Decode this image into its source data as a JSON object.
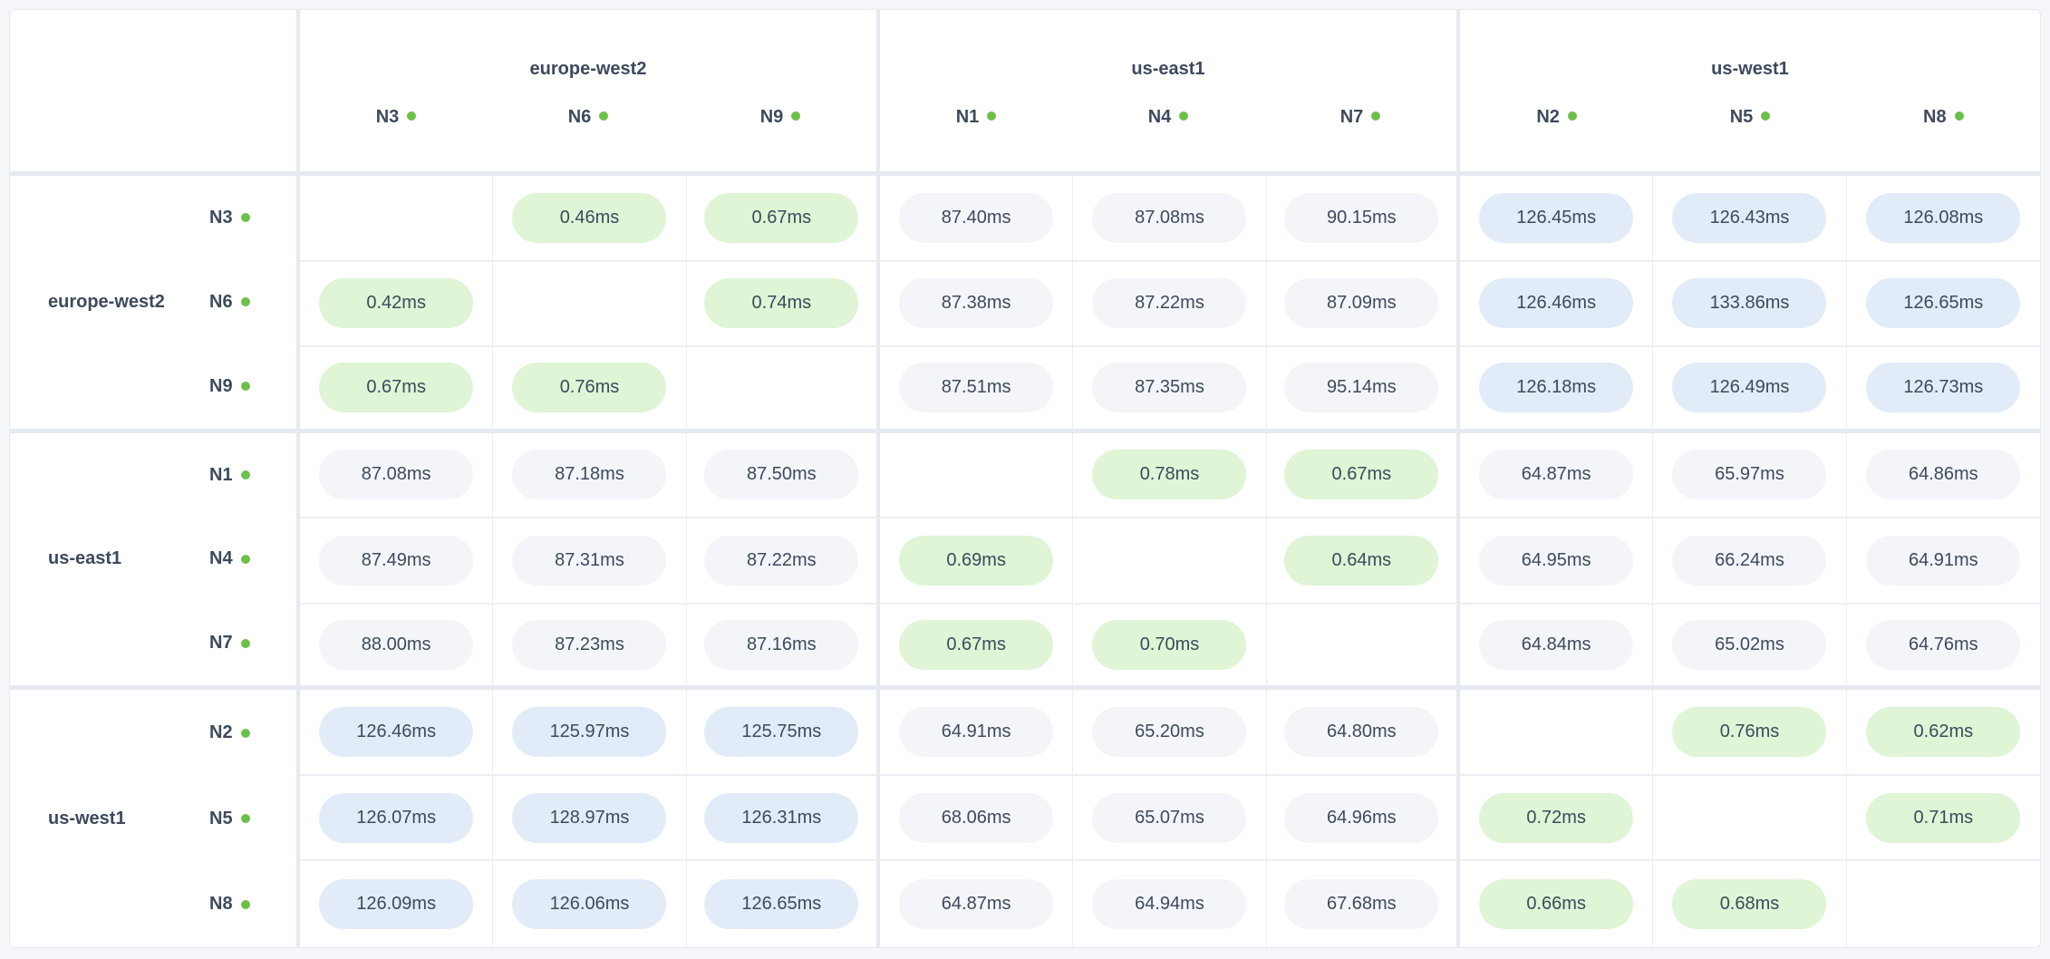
{
  "colors": {
    "green": "#dff5d6",
    "blue": "#e2ecf8",
    "gray": "#f3f5f9",
    "status_dot": "#6cc04a",
    "text": "#3d4a5c"
  },
  "status_icon": "green-status-dot",
  "regions": [
    {
      "name": "europe-west2",
      "nodes": [
        "N3",
        "N6",
        "N9"
      ]
    },
    {
      "name": "us-east1",
      "nodes": [
        "N1",
        "N4",
        "N7"
      ]
    },
    {
      "name": "us-west1",
      "nodes": [
        "N2",
        "N5",
        "N8"
      ]
    }
  ],
  "matrix": [
    {
      "row": "N3",
      "cells": [
        {
          "v": "",
          "t": ""
        },
        {
          "v": "0.46ms",
          "t": "green"
        },
        {
          "v": "0.67ms",
          "t": "green"
        },
        {
          "v": "87.40ms",
          "t": "gray"
        },
        {
          "v": "87.08ms",
          "t": "gray"
        },
        {
          "v": "90.15ms",
          "t": "gray"
        },
        {
          "v": "126.45ms",
          "t": "blue"
        },
        {
          "v": "126.43ms",
          "t": "blue"
        },
        {
          "v": "126.08ms",
          "t": "blue"
        }
      ]
    },
    {
      "row": "N6",
      "cells": [
        {
          "v": "0.42ms",
          "t": "green"
        },
        {
          "v": "",
          "t": ""
        },
        {
          "v": "0.74ms",
          "t": "green"
        },
        {
          "v": "87.38ms",
          "t": "gray"
        },
        {
          "v": "87.22ms",
          "t": "gray"
        },
        {
          "v": "87.09ms",
          "t": "gray"
        },
        {
          "v": "126.46ms",
          "t": "blue"
        },
        {
          "v": "133.86ms",
          "t": "blue"
        },
        {
          "v": "126.65ms",
          "t": "blue"
        }
      ]
    },
    {
      "row": "N9",
      "cells": [
        {
          "v": "0.67ms",
          "t": "green"
        },
        {
          "v": "0.76ms",
          "t": "green"
        },
        {
          "v": "",
          "t": ""
        },
        {
          "v": "87.51ms",
          "t": "gray"
        },
        {
          "v": "87.35ms",
          "t": "gray"
        },
        {
          "v": "95.14ms",
          "t": "gray"
        },
        {
          "v": "126.18ms",
          "t": "blue"
        },
        {
          "v": "126.49ms",
          "t": "blue"
        },
        {
          "v": "126.73ms",
          "t": "blue"
        }
      ]
    },
    {
      "row": "N1",
      "cells": [
        {
          "v": "87.08ms",
          "t": "gray"
        },
        {
          "v": "87.18ms",
          "t": "gray"
        },
        {
          "v": "87.50ms",
          "t": "gray"
        },
        {
          "v": "",
          "t": ""
        },
        {
          "v": "0.78ms",
          "t": "green"
        },
        {
          "v": "0.67ms",
          "t": "green"
        },
        {
          "v": "64.87ms",
          "t": "gray"
        },
        {
          "v": "65.97ms",
          "t": "gray"
        },
        {
          "v": "64.86ms",
          "t": "gray"
        }
      ]
    },
    {
      "row": "N4",
      "cells": [
        {
          "v": "87.49ms",
          "t": "gray"
        },
        {
          "v": "87.31ms",
          "t": "gray"
        },
        {
          "v": "87.22ms",
          "t": "gray"
        },
        {
          "v": "0.69ms",
          "t": "green"
        },
        {
          "v": "",
          "t": ""
        },
        {
          "v": "0.64ms",
          "t": "green"
        },
        {
          "v": "64.95ms",
          "t": "gray"
        },
        {
          "v": "66.24ms",
          "t": "gray"
        },
        {
          "v": "64.91ms",
          "t": "gray"
        }
      ]
    },
    {
      "row": "N7",
      "cells": [
        {
          "v": "88.00ms",
          "t": "gray"
        },
        {
          "v": "87.23ms",
          "t": "gray"
        },
        {
          "v": "87.16ms",
          "t": "gray"
        },
        {
          "v": "0.67ms",
          "t": "green"
        },
        {
          "v": "0.70ms",
          "t": "green"
        },
        {
          "v": "",
          "t": ""
        },
        {
          "v": "64.84ms",
          "t": "gray"
        },
        {
          "v": "65.02ms",
          "t": "gray"
        },
        {
          "v": "64.76ms",
          "t": "gray"
        }
      ]
    },
    {
      "row": "N2",
      "cells": [
        {
          "v": "126.46ms",
          "t": "blue"
        },
        {
          "v": "125.97ms",
          "t": "blue"
        },
        {
          "v": "125.75ms",
          "t": "blue"
        },
        {
          "v": "64.91ms",
          "t": "gray"
        },
        {
          "v": "65.20ms",
          "t": "gray"
        },
        {
          "v": "64.80ms",
          "t": "gray"
        },
        {
          "v": "",
          "t": ""
        },
        {
          "v": "0.76ms",
          "t": "green"
        },
        {
          "v": "0.62ms",
          "t": "green"
        }
      ]
    },
    {
      "row": "N5",
      "cells": [
        {
          "v": "126.07ms",
          "t": "blue"
        },
        {
          "v": "128.97ms",
          "t": "blue"
        },
        {
          "v": "126.31ms",
          "t": "blue"
        },
        {
          "v": "68.06ms",
          "t": "gray"
        },
        {
          "v": "65.07ms",
          "t": "gray"
        },
        {
          "v": "64.96ms",
          "t": "gray"
        },
        {
          "v": "0.72ms",
          "t": "green"
        },
        {
          "v": "",
          "t": ""
        },
        {
          "v": "0.71ms",
          "t": "green"
        }
      ]
    },
    {
      "row": "N8",
      "cells": [
        {
          "v": "126.09ms",
          "t": "blue"
        },
        {
          "v": "126.06ms",
          "t": "blue"
        },
        {
          "v": "126.65ms",
          "t": "blue"
        },
        {
          "v": "64.87ms",
          "t": "gray"
        },
        {
          "v": "64.94ms",
          "t": "gray"
        },
        {
          "v": "67.68ms",
          "t": "gray"
        },
        {
          "v": "0.66ms",
          "t": "green"
        },
        {
          "v": "0.68ms",
          "t": "green"
        },
        {
          "v": ""
        }
      ]
    }
  ]
}
